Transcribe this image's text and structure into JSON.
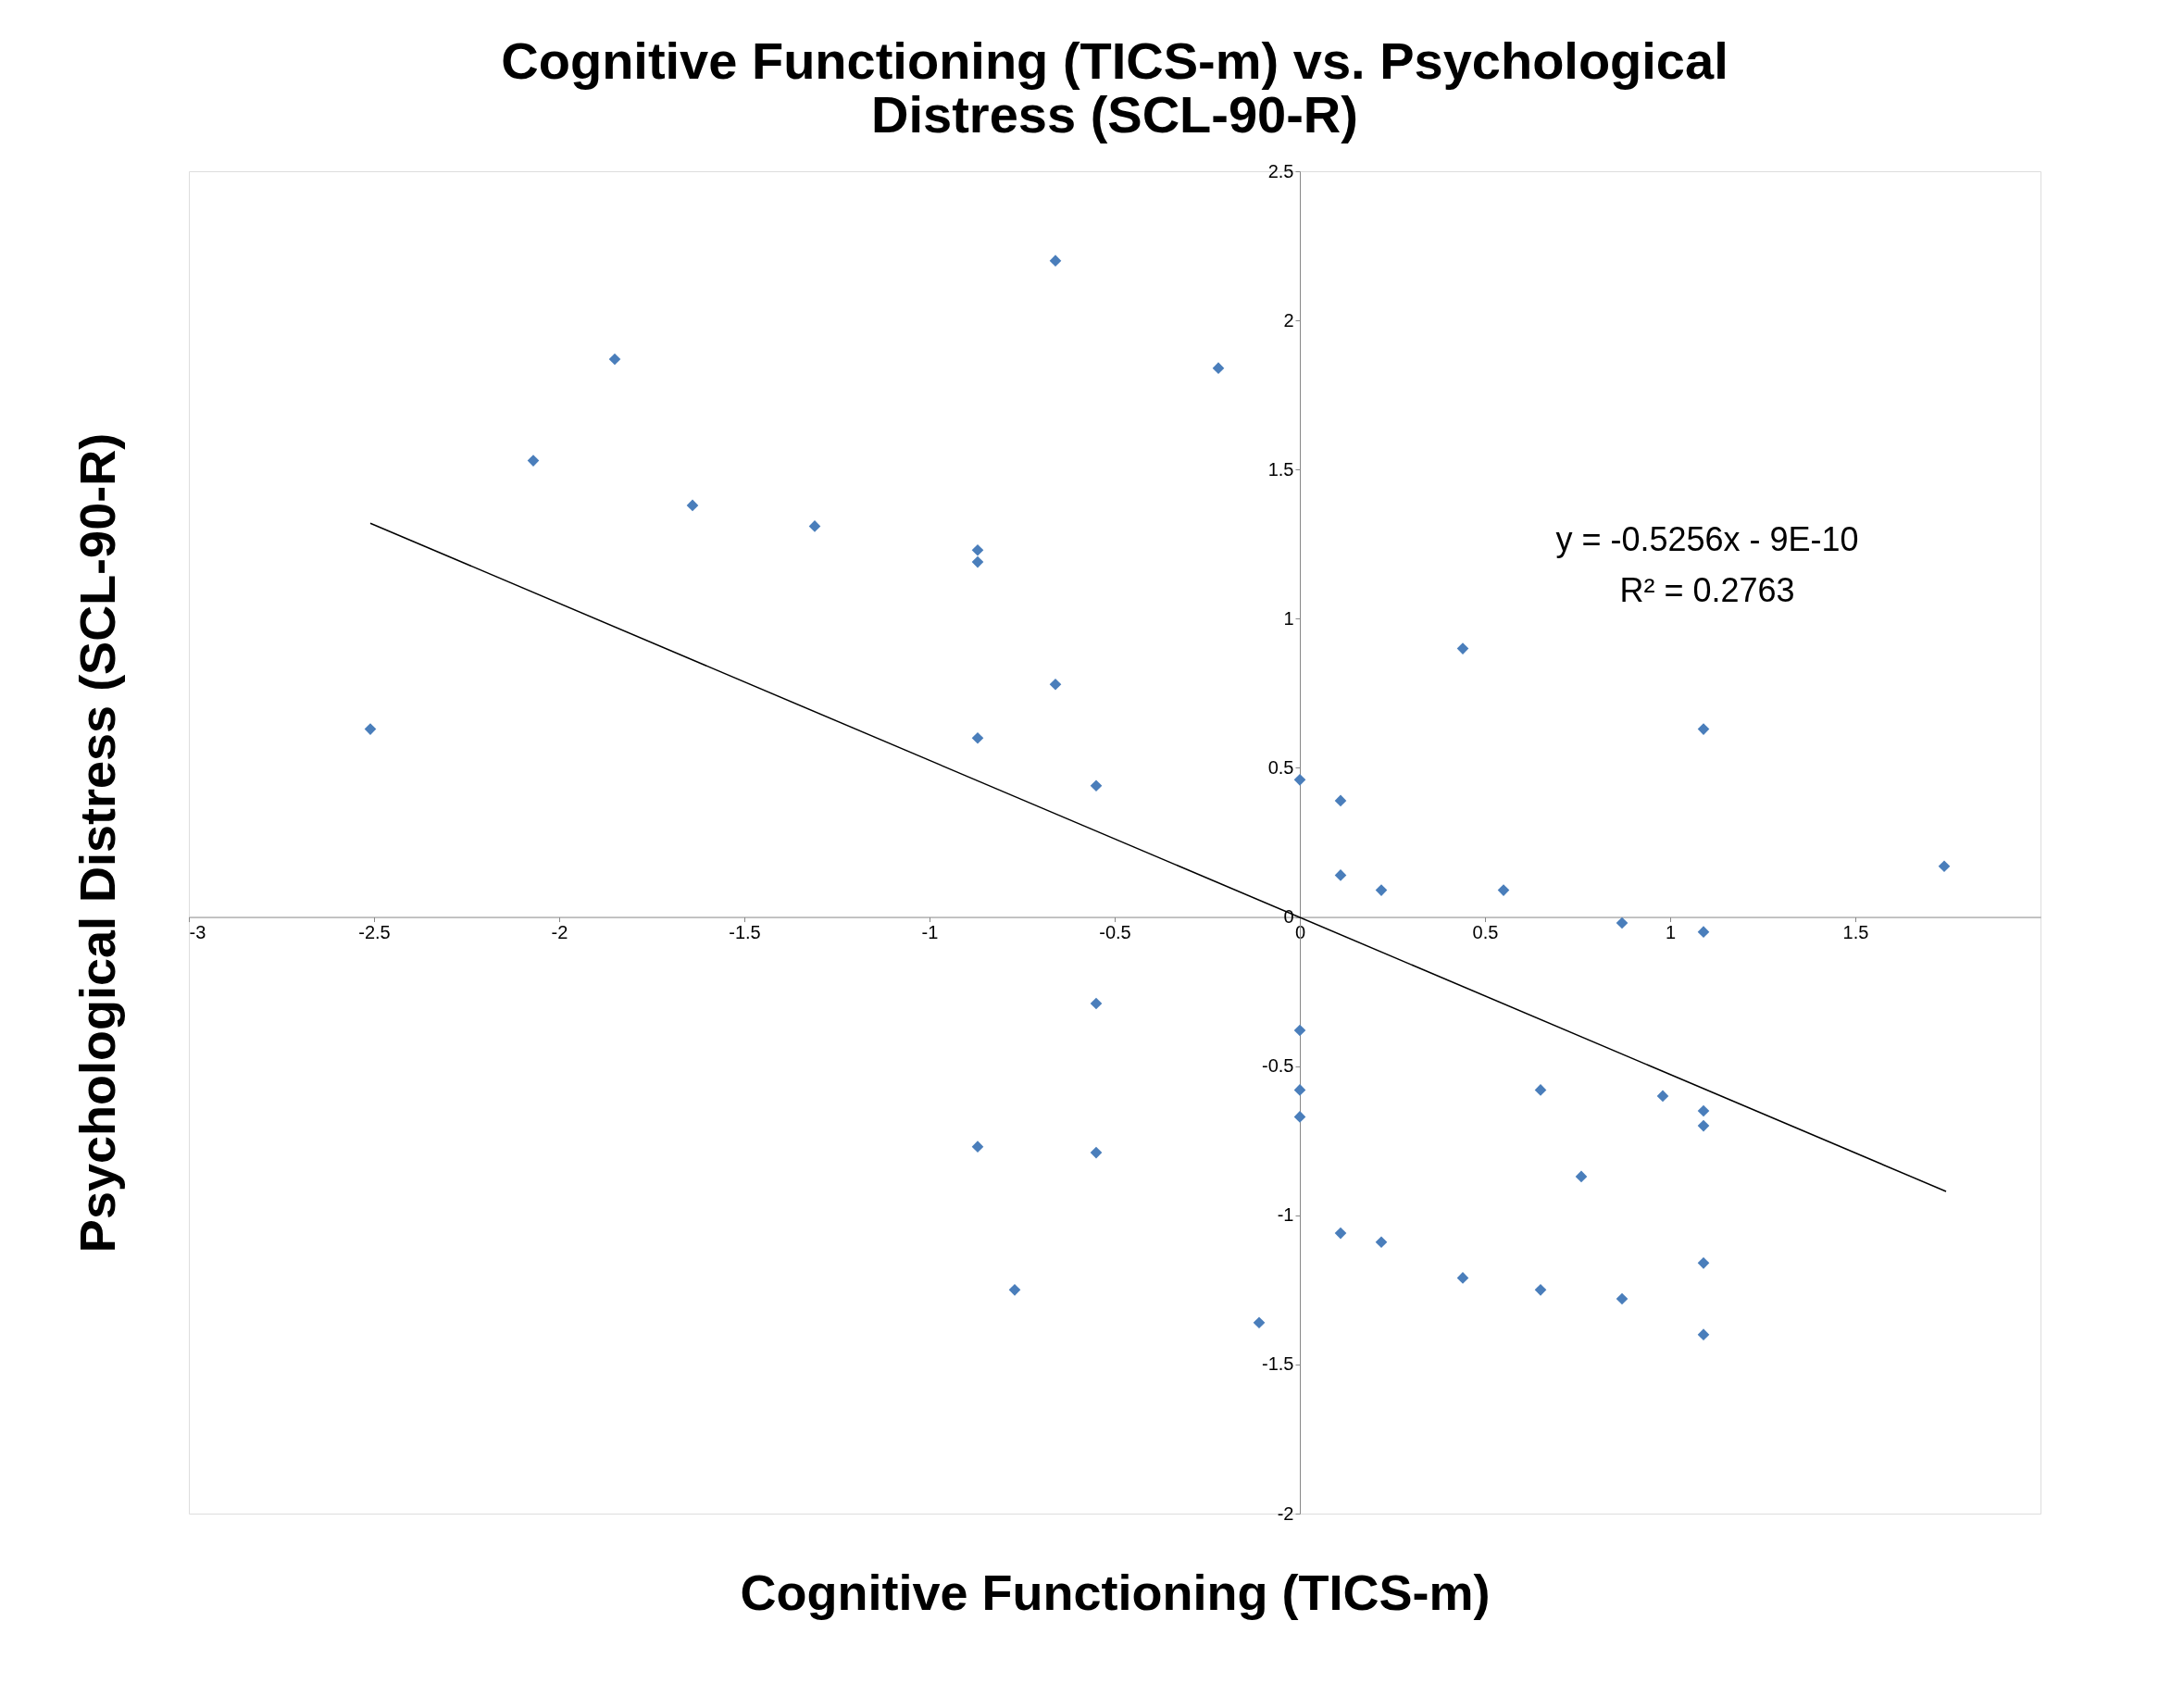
{
  "chart_data": {
    "type": "scatter",
    "title": "Cognitive Functioning (TICS-m) vs. Psychological Distress (SCL-90-R)",
    "xlabel": "Cognitive Functioning (TICS-m)",
    "ylabel": "Psychological Distress (SCL-90-R)",
    "series": [
      {
        "type": "scatter",
        "color": "#4a7ebb",
        "marker": "diamond",
        "x": [
          -2.51,
          -2.07,
          -1.85,
          -1.64,
          -1.31,
          -0.87,
          -0.87,
          -0.87,
          -0.66,
          -0.66,
          -0.55,
          -0.22,
          0,
          0.11,
          0.11,
          0.22,
          0.44,
          0.55,
          0.87,
          1.09,
          1.09,
          1.74,
          -0.55,
          0,
          0,
          0,
          -0.87,
          -0.55,
          -0.77,
          -0.11,
          0.11,
          0.22,
          0.44,
          0.65,
          0.65,
          0.76,
          0.87,
          0.98,
          1.09,
          1.09,
          1.09,
          1.09
        ],
        "values": [
          0.63,
          1.53,
          1.87,
          1.38,
          1.31,
          1.23,
          1.19,
          0.6,
          2.2,
          0.78,
          0.44,
          1.84,
          0.46,
          0.39,
          0.14,
          0.09,
          0.9,
          0.09,
          -0.02,
          0.63,
          -0.05,
          0.17,
          -0.29,
          -0.38,
          -0.58,
          -0.67,
          -0.77,
          -0.79,
          -1.25,
          -1.36,
          -1.06,
          -1.09,
          -1.21,
          -0.58,
          -1.25,
          -0.87,
          -1.28,
          -0.6,
          -0.65,
          -0.7,
          -1.16,
          -1.4
        ]
      },
      {
        "type": "line",
        "color": "#000000",
        "x": [
          -2.51,
          1.745
        ],
        "values": [
          1.32,
          -0.92
        ]
      }
    ],
    "annotations": [
      "y = -0.5256x - 9E-10",
      "R² = 0.2763"
    ],
    "xlim": [
      -3,
      2
    ],
    "ylim": [
      -2,
      2.5
    ],
    "xticks": [
      -3,
      -2.5,
      -2,
      -1.5,
      -1,
      -0.5,
      0,
      0.5,
      1,
      1.5
    ],
    "yticks": [
      -2,
      -1.5,
      -1,
      -0.5,
      0,
      0.5,
      1,
      1.5,
      2,
      2.5
    ],
    "grid": false
  }
}
